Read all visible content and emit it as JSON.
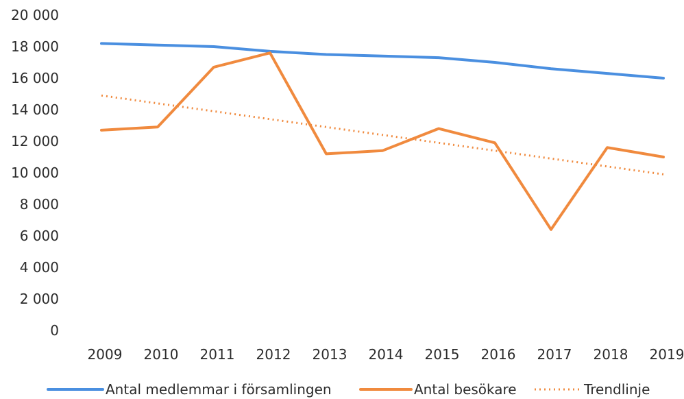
{
  "chart_data": {
    "type": "line",
    "categories": [
      "2009",
      "2010",
      "2011",
      "2012",
      "2013",
      "2014",
      "2015",
      "2016",
      "2017",
      "2018",
      "2019"
    ],
    "ylim": [
      0,
      20000
    ],
    "yticks": [
      0,
      2000,
      4000,
      6000,
      8000,
      10000,
      12000,
      14000,
      16000,
      18000,
      20000
    ],
    "ytick_labels": [
      "0",
      "2 000",
      "4 000",
      "6 000",
      "8 000",
      "10 000",
      "12 000",
      "14 000",
      "16 000",
      "18 000",
      "20 000"
    ],
    "grid": false,
    "legend_position": "bottom",
    "series": [
      {
        "name": "Antal medlemmar i församlingen",
        "color": "#4a8fe0",
        "style": "solid",
        "values": [
          18200,
          18100,
          18000,
          17700,
          17500,
          17400,
          17300,
          17000,
          16600,
          16300,
          16000
        ]
      },
      {
        "name": "Antal besökare",
        "color": "#f08a3e",
        "style": "solid",
        "values": [
          12700,
          12900,
          16700,
          17600,
          11200,
          11400,
          12800,
          11900,
          6400,
          11600,
          11000
        ]
      },
      {
        "name": "Trendlinje",
        "color": "#f08a3e",
        "style": "dotted",
        "values": [
          14900,
          14400,
          13900,
          13400,
          12900,
          12400,
          11900,
          11400,
          10900,
          10400,
          9900
        ]
      }
    ]
  }
}
